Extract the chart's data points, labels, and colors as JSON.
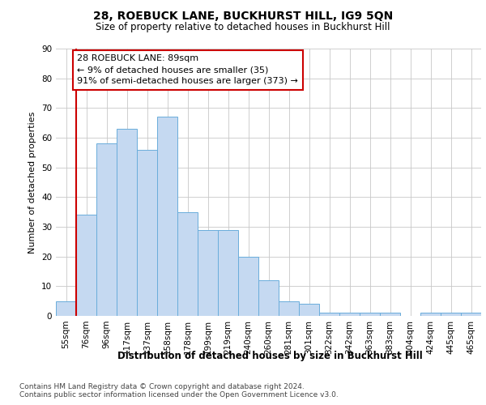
{
  "title1": "28, ROEBUCK LANE, BUCKHURST HILL, IG9 5QN",
  "title2": "Size of property relative to detached houses in Buckhurst Hill",
  "xlabel": "Distribution of detached houses by size in Buckhurst Hill",
  "ylabel": "Number of detached properties",
  "categories": [
    "55sqm",
    "76sqm",
    "96sqm",
    "117sqm",
    "137sqm",
    "158sqm",
    "178sqm",
    "199sqm",
    "219sqm",
    "240sqm",
    "260sqm",
    "281sqm",
    "301sqm",
    "322sqm",
    "342sqm",
    "363sqm",
    "383sqm",
    "404sqm",
    "424sqm",
    "445sqm",
    "465sqm"
  ],
  "values": [
    5,
    34,
    58,
    63,
    56,
    67,
    35,
    29,
    29,
    20,
    12,
    5,
    4,
    1,
    1,
    1,
    1,
    0,
    1,
    1,
    1
  ],
  "bar_color": "#c5d9f1",
  "bar_edge_color": "#6aaddb",
  "annotation_text": "28 ROEBUCK LANE: 89sqm\n← 9% of detached houses are smaller (35)\n91% of semi-detached houses are larger (373) →",
  "annotation_box_color": "#ffffff",
  "annotation_box_edge": "#cc0000",
  "vline_color": "#cc0000",
  "ylim": [
    0,
    90
  ],
  "yticks": [
    0,
    10,
    20,
    30,
    40,
    50,
    60,
    70,
    80,
    90
  ],
  "footer1": "Contains HM Land Registry data © Crown copyright and database right 2024.",
  "footer2": "Contains public sector information licensed under the Open Government Licence v3.0.",
  "background_color": "#ffffff",
  "plot_background": "#ffffff",
  "grid_color": "#c8c8c8",
  "title1_fontsize": 10,
  "title2_fontsize": 8.5,
  "xlabel_fontsize": 8.5,
  "ylabel_fontsize": 8,
  "tick_fontsize": 7.5,
  "annotation_fontsize": 8,
  "footer_fontsize": 6.5
}
